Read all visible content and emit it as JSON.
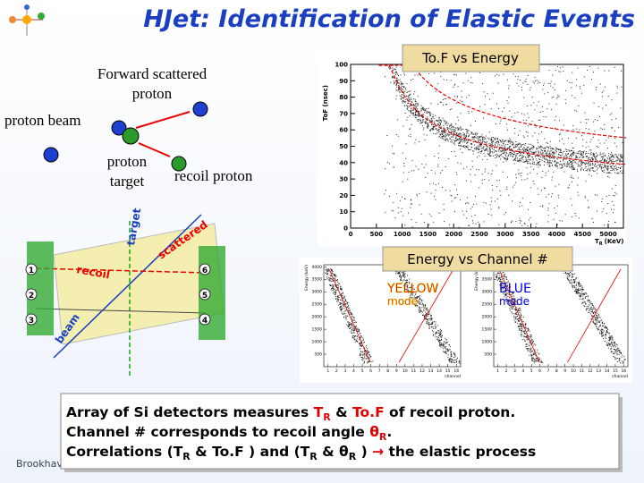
{
  "header": {
    "title": "HJet: Identification of Elastic Events"
  },
  "schematic": {
    "forward": [
      "Forward scattered",
      "proton"
    ],
    "beam": "proton beam",
    "target": [
      "proton",
      "target"
    ],
    "recoil": "recoil proton"
  },
  "detector_diagram": {
    "labels": [
      "target",
      "recoil",
      "scattered",
      "beam"
    ],
    "detector_numbers": [
      "1",
      "2",
      "3",
      "6",
      "5",
      "4"
    ]
  },
  "tof_plot": {
    "label": "To.F vs Energy",
    "y_axis": "ToF (nsec)",
    "x_axis": {
      "main": "T",
      "sub": "R",
      "unit": "(KeV)"
    },
    "yticks": [
      0,
      10,
      20,
      30,
      40,
      50,
      60,
      70,
      80,
      90,
      100
    ],
    "xticks": [
      0,
      500,
      1000,
      1500,
      2000,
      2500,
      3000,
      3500,
      4000,
      4500,
      5000
    ]
  },
  "channel_plots": {
    "label": "Energy vs Channel #",
    "y_axis": "Energy (keV)",
    "x_axis": "channel",
    "yticks": [
      500,
      1000,
      1500,
      2000,
      2500,
      3000,
      3500,
      4000
    ],
    "xticks": [
      1,
      2,
      3,
      4,
      5,
      6,
      7,
      8,
      9,
      10,
      11,
      12,
      13,
      14,
      15,
      16
    ],
    "panels": [
      {
        "mode": [
          "YELLOW",
          "mode"
        ],
        "color": "#e00000"
      },
      {
        "mode": [
          "BLUE",
          "mode"
        ],
        "color": "#0000e0"
      }
    ]
  },
  "caption": {
    "lines": [
      [
        {
          "text": "Array of Si detectors measures "
        },
        {
          "text": "T",
          "color": "#e00000"
        },
        {
          "text": "R",
          "color": "#e00000",
          "sub": true
        },
        {
          "text": " & "
        },
        {
          "text": "To.F",
          "color": "#e00000"
        },
        {
          "text": " of recoil proton."
        }
      ],
      [
        {
          "text": "Channel # corresponds to recoil angle "
        },
        {
          "text": "θ",
          "color": "#e00000"
        },
        {
          "text": "R",
          "color": "#e00000",
          "sub": true
        },
        {
          "text": "."
        }
      ],
      [
        {
          "text": "Correlations (T"
        },
        {
          "text": "R",
          "sub": true
        },
        {
          "text": " & To.F ) and (T"
        },
        {
          "text": "R",
          "sub": true
        },
        {
          "text": " & θ"
        },
        {
          "text": "R",
          "sub": true
        },
        {
          "text": " ) "
        },
        {
          "text": "→",
          "color": "#e00000"
        },
        {
          "text": " the elastic process"
        }
      ]
    ]
  },
  "footer": {
    "logo": "Brookhaven"
  }
}
